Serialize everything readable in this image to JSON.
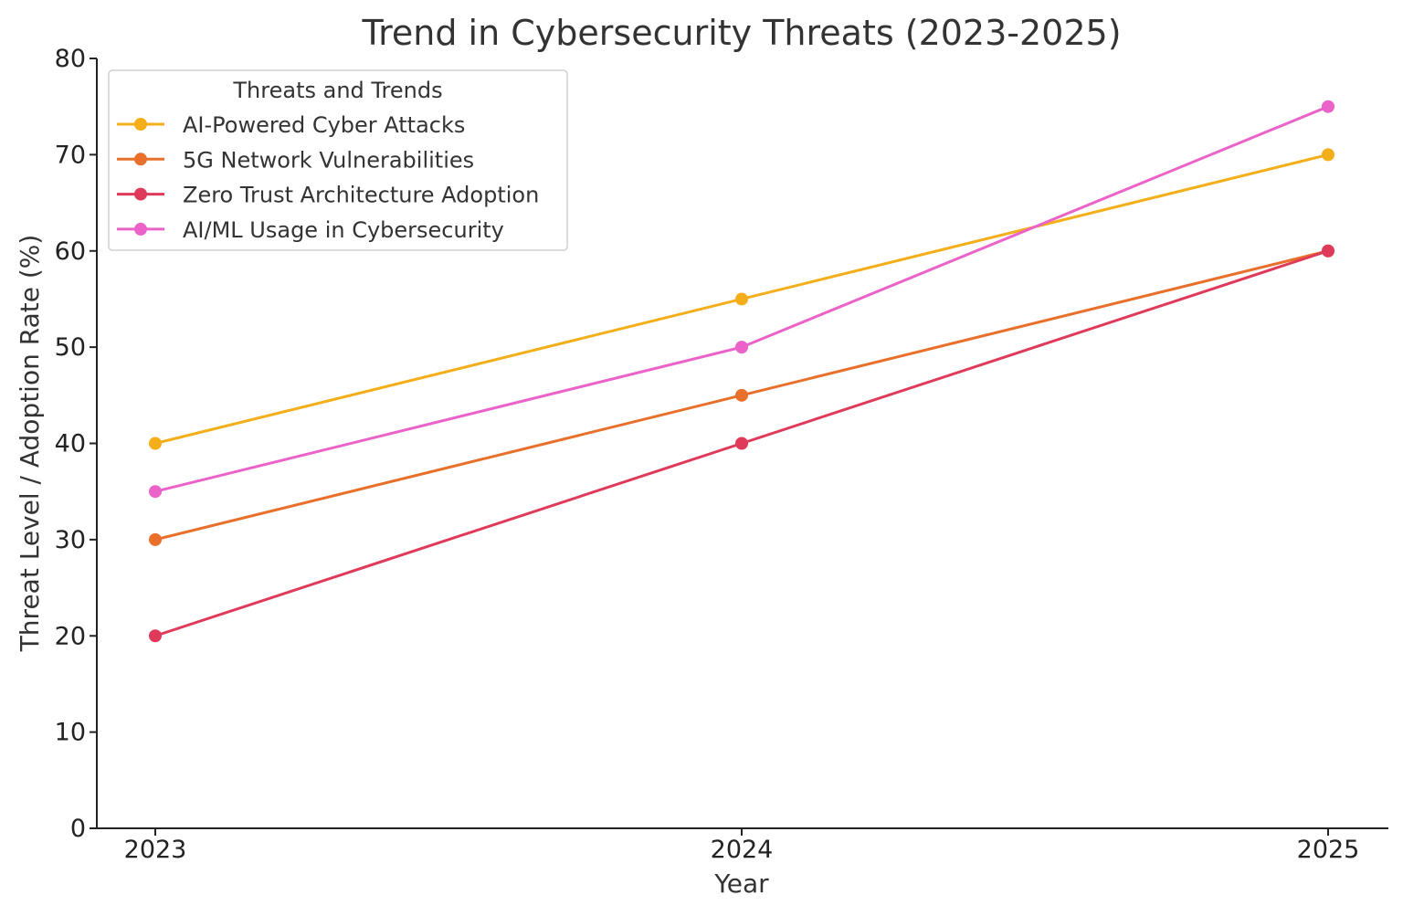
{
  "chart_data": {
    "type": "line",
    "title": "Trend in Cybersecurity Threats (2023-2025)",
    "xlabel": "Year",
    "ylabel": "Threat Level / Adoption Rate (%)",
    "categories": [
      "2023",
      "2024",
      "2025"
    ],
    "ylim": [
      0,
      80
    ],
    "yticks": [
      "0",
      "10",
      "20",
      "30",
      "40",
      "50",
      "60",
      "70",
      "80"
    ],
    "grid": false,
    "legend": {
      "title": "Threats and Trends",
      "placement": "upper-left"
    },
    "series": [
      {
        "name": "AI-Powered Cyber Attacks",
        "values": [
          40,
          55,
          70
        ],
        "color": "#F4AE1A"
      },
      {
        "name": "5G Network Vulnerabilities",
        "values": [
          30,
          45,
          60
        ],
        "color": "#E8702A"
      },
      {
        "name": "Zero Trust Architecture Adoption",
        "values": [
          20,
          40,
          60
        ],
        "color": "#E03A5A"
      },
      {
        "name": "AI/ML Usage in Cybersecurity",
        "values": [
          35,
          50,
          75
        ],
        "color": "#EB62C8"
      }
    ]
  }
}
